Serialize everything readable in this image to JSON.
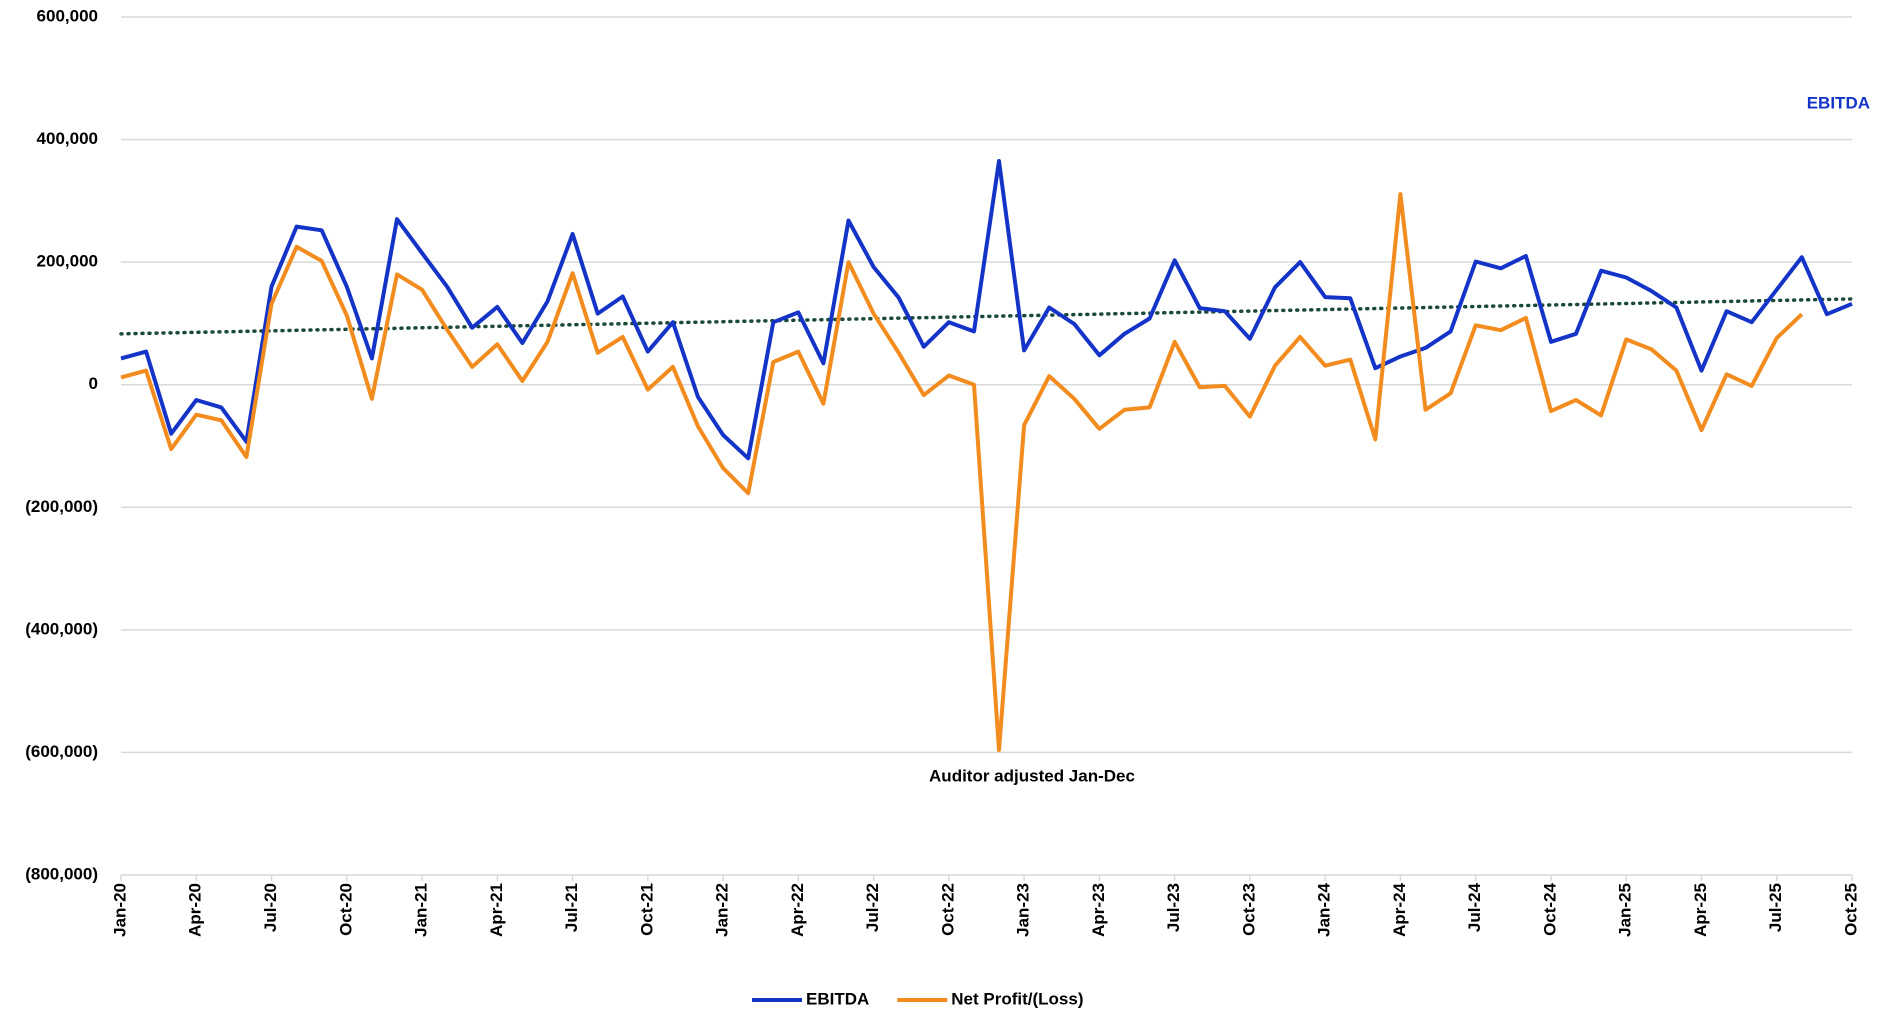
{
  "chart_data": {
    "type": "line",
    "categories": [
      "Jan-20",
      null,
      null,
      "Apr-20",
      null,
      null,
      "Jul-20",
      null,
      null,
      "Oct-20",
      null,
      null,
      "Jan-21",
      null,
      null,
      "Apr-21",
      null,
      null,
      "Jul-21",
      null,
      null,
      "Oct-21",
      null,
      null,
      "Jan-22",
      null,
      null,
      "Apr-22",
      null,
      null,
      "Jul-22",
      null,
      null,
      "Oct-22",
      null,
      null,
      "Jan-23",
      null,
      null,
      "Apr-23",
      null,
      null,
      "Jul-23",
      null,
      null,
      "Oct-23",
      null,
      null,
      "Jan-24",
      null,
      null,
      "Apr-24",
      null,
      null,
      "Jul-24",
      null,
      null,
      "Oct-24",
      null,
      null,
      "Jan-25",
      null,
      null,
      "Apr-25",
      null,
      null,
      "Jul-25",
      null,
      null,
      "Oct-25"
    ],
    "series": [
      {
        "name": "EBITDA",
        "color": "#1434c8",
        "values": [
          43000,
          54000,
          -80000,
          -25000,
          -37000,
          -93000,
          160000,
          258000,
          252000,
          160000,
          43000,
          270000,
          215000,
          160000,
          93000,
          127000,
          68000,
          136000,
          246000,
          116000,
          144000,
          54000,
          102000,
          -20000,
          -82000,
          -120000,
          102000,
          118000,
          35000,
          268000,
          192000,
          142000,
          62000,
          102000,
          87000,
          365000,
          56000,
          126000,
          99000,
          48000,
          83000,
          108000,
          203000,
          125000,
          120000,
          75000,
          159000,
          200000,
          143000,
          141000,
          27000,
          46000,
          60000,
          87000,
          201000,
          190000,
          210000,
          70000,
          83000,
          186000,
          175000,
          153000,
          126000,
          23000,
          120000,
          102000,
          155000,
          208000,
          115000,
          132000
        ]
      },
      {
        "name": "Net Profit/(Loss)",
        "color": "#f28c1e",
        "values": [
          12000,
          23000,
          -105000,
          -49000,
          -58000,
          -118000,
          132000,
          225000,
          202000,
          113000,
          -23000,
          180000,
          155000,
          90000,
          29000,
          66000,
          6000,
          70000,
          182000,
          52000,
          78000,
          -8000,
          29000,
          -68000,
          -136000,
          -177000,
          37000,
          54000,
          -31000,
          200000,
          116000,
          52000,
          -17000,
          15000,
          0,
          -596000,
          -66000,
          14000,
          -23000,
          -72000,
          -41000,
          -37000,
          70000,
          -4000,
          -2000,
          -52000,
          31000,
          78000,
          31000,
          41000,
          -89000,
          311000,
          -41000,
          -14000,
          97000,
          89000,
          109000,
          -43000,
          -25000,
          -50000,
          74000,
          58000,
          23000,
          -74000,
          17000,
          -2000,
          76000,
          115000,
          null,
          null
        ]
      }
    ],
    "trend": {
      "color": "#1c4a3a",
      "values": [
        83000,
        140000
      ]
    },
    "ylim": [
      -800000,
      600000
    ],
    "yticks": [
      {
        "value": -800000,
        "label": "(800,000)"
      },
      {
        "value": -600000,
        "label": "(600,000)"
      },
      {
        "value": -400000,
        "label": "(400,000)"
      },
      {
        "value": -200000,
        "label": "(200,000)"
      },
      0,
      {
        "value": 200000,
        "label": "200,000"
      },
      {
        "value": 400000,
        "label": "400,000"
      },
      {
        "value": 600000,
        "label": "600,000"
      }
    ],
    "grid": true,
    "annotations": [
      {
        "text": "Auditor adjusted Jan-Dec"
      },
      {
        "text": "EBITDA",
        "color": "#1434c8"
      }
    ]
  }
}
